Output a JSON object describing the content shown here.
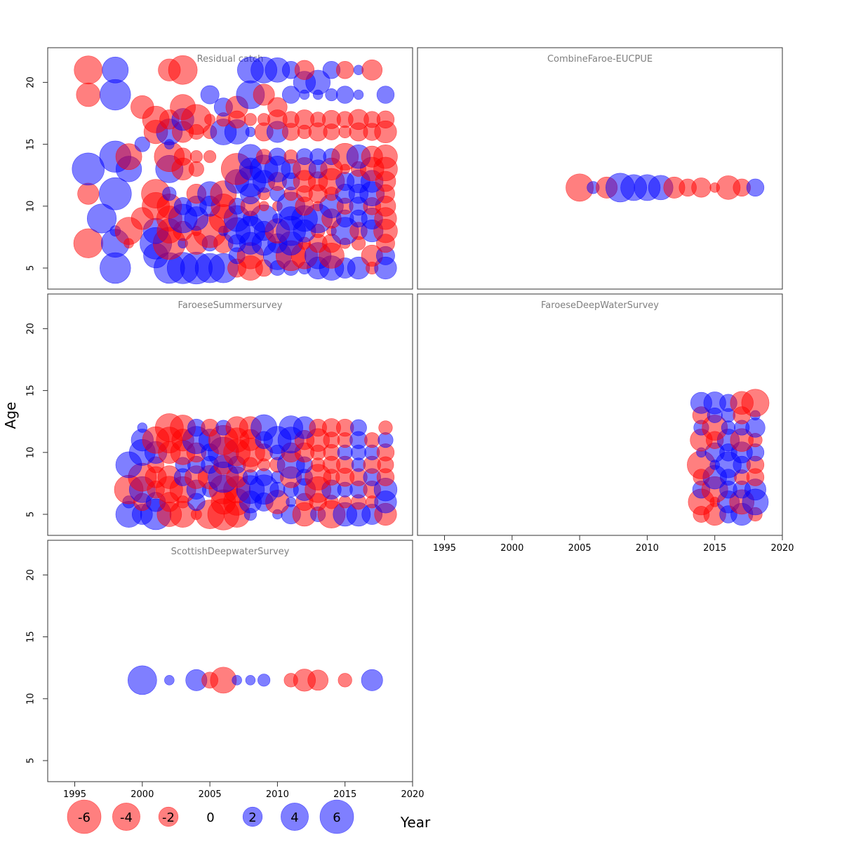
{
  "chart_data": {
    "type": "scatter",
    "subtype": "bubble-residuals",
    "xlabel": "Year",
    "ylabel": "Age",
    "xlim": [
      1993,
      2020
    ],
    "ylim": [
      3.3,
      22.8
    ],
    "x_ticks": [
      1995,
      2000,
      2005,
      2010,
      2015,
      2020
    ],
    "y_ticks": [
      5,
      10,
      15,
      20
    ],
    "colors": {
      "positive": "#0000ff",
      "negative": "#ff0000",
      "fill_opacity": 0.5
    },
    "legend": {
      "placement": "bottom-left",
      "entries": [
        {
          "value": -6,
          "label": "-6"
        },
        {
          "value": -4,
          "label": "-4"
        },
        {
          "value": -2,
          "label": "-2"
        },
        {
          "value": 0,
          "label": "0"
        },
        {
          "value": 2,
          "label": "2"
        },
        {
          "value": 4,
          "label": "4"
        },
        {
          "value": 6,
          "label": "6"
        }
      ]
    },
    "panels": [
      {
        "title": "Residual catch",
        "years": [
          1996,
          1997,
          1998,
          1999,
          2000,
          2001,
          2002,
          2003,
          2004,
          2005,
          2006,
          2007,
          2008,
          2009,
          2010,
          2011,
          2012,
          2013,
          2014,
          2015,
          2016,
          2017,
          2018
        ],
        "ages": [
          5,
          6,
          7,
          8,
          9,
          10,
          11,
          12,
          13,
          14,
          15,
          16,
          17,
          18,
          19,
          20,
          21
        ],
        "residuals": [
          [
            0,
            0,
            5.0,
            0,
            0,
            0,
            5.0,
            5.2,
            5.4,
            4.6,
            4.6,
            -1.8,
            -3.2,
            -1.5,
            1.2,
            1.2,
            0.8,
            2.6,
            3.2,
            2.2,
            2.6,
            -0.8,
            2.6
          ],
          [
            0,
            0,
            0,
            0,
            0,
            3.2,
            0,
            0,
            0,
            0,
            0,
            1.4,
            -3.7,
            0,
            4.2,
            -4.8,
            -3.7,
            3.7,
            -3.4,
            0,
            0,
            -2.4,
            1.8
          ],
          [
            -4.5,
            0,
            4.2,
            -0.5,
            0,
            5.3,
            -5.5,
            0.5,
            -2.6,
            1.3,
            -2.0,
            1.6,
            2.6,
            3.1,
            2.0,
            3.0,
            -0.8,
            -1.8,
            -1.8,
            -0.6,
            -1.0,
            0,
            -1.8
          ],
          [
            0,
            0,
            0.6,
            -4.0,
            0,
            3.4,
            -3.2,
            -2.0,
            -0.5,
            -6.0,
            0.5,
            3.8,
            4.6,
            2.0,
            -3.2,
            4.6,
            2.7,
            -1.0,
            -0.5,
            4.0,
            -1.6,
            2.6,
            -3.0
          ],
          [
            0,
            4.5,
            0,
            0,
            -2.6,
            0,
            -3.4,
            4.4,
            3.0,
            0,
            -4.2,
            3.6,
            1.2,
            4.0,
            0.5,
            3.0,
            3.6,
            4.4,
            -2.0,
            1.6,
            1.6,
            2.4,
            -2.6
          ],
          [
            0,
            0,
            0,
            0,
            0,
            -4.0,
            -3.2,
            1.6,
            2.2,
            2.2,
            -3.2,
            1.4,
            -2.0,
            -0.5,
            -0.5,
            4.2,
            -1.8,
            -0.5,
            3.0,
            -1.4,
            1.8,
            -1.6,
            -2.2
          ],
          [
            -2.4,
            0,
            5.5,
            0,
            0,
            -4.4,
            1.0,
            0,
            -2.0,
            3.2,
            -3.6,
            0,
            2.2,
            -0.8,
            1.2,
            -1.0,
            -1.4,
            -1.8,
            -1.0,
            2.0,
            2.0,
            3.2,
            -1.8
          ],
          [
            0,
            0,
            0,
            0,
            0,
            0,
            0,
            0,
            0,
            0,
            0,
            3.0,
            5.0,
            2.6,
            -1.8,
            1.6,
            -2.6,
            -2.0,
            -3.6,
            1.8,
            2.8,
            2.6,
            -2.2
          ],
          [
            5.5,
            0,
            0,
            3.5,
            0,
            0,
            4.0,
            -2.6,
            -1.2,
            0,
            0,
            -5.2,
            2.6,
            4.2,
            3.6,
            2.0,
            -2.8,
            1.8,
            -2.6,
            -0.5,
            -1.2,
            -3.0,
            -3.0
          ],
          [
            0,
            0,
            5.2,
            -3.6,
            0,
            0,
            -4.8,
            -1.6,
            -0.8,
            -0.8,
            0,
            0,
            3.2,
            -1.2,
            1.6,
            -1.0,
            1.4,
            1.4,
            1.4,
            -3.8,
            3.0,
            -2.4,
            -3.0
          ],
          [
            0,
            0,
            0,
            0,
            1.2,
            0,
            0.5,
            0,
            0,
            0,
            0,
            0,
            0,
            0,
            0,
            0,
            0,
            0,
            0,
            0,
            0,
            0,
            0
          ],
          [
            0,
            0,
            0,
            0,
            0,
            -3.0,
            3.6,
            -2.4,
            -1.2,
            -1.0,
            3.6,
            3.2,
            0.5,
            -1.8,
            2.4,
            -1.6,
            -1.0,
            -1.8,
            -1.4,
            -0.8,
            -1.8,
            -1.6,
            -2.6
          ],
          [
            0,
            0,
            0,
            0,
            0,
            -3.8,
            -2.0,
            2.6,
            -4.8,
            -0.6,
            -1.0,
            -1.6,
            -0.8,
            -0.8,
            -2.0,
            -1.4,
            -2.0,
            -1.2,
            -1.8,
            -1.4,
            -2.2,
            -1.4,
            -1.6
          ],
          [
            0,
            0,
            0,
            0,
            -2.8,
            0,
            0,
            -3.4,
            0,
            0,
            1.8,
            -2.6,
            0,
            0,
            -2.0,
            0,
            0,
            0,
            0,
            0,
            0,
            0,
            0
          ],
          [
            -3.0,
            0,
            5.0,
            0,
            0,
            0,
            0,
            0,
            0,
            1.8,
            0,
            0,
            4.2,
            -2.4,
            0,
            1.6,
            0.5,
            0.5,
            0.8,
            1.6,
            0.5,
            0,
            1.6
          ],
          [
            0,
            0,
            0,
            0,
            0,
            0,
            0,
            0,
            0,
            0,
            0,
            0,
            0,
            0,
            0,
            0,
            2.6,
            3.2,
            0,
            0,
            0,
            0,
            0
          ],
          [
            -4.2,
            0,
            3.6,
            0,
            0,
            0,
            -2.6,
            -4.4,
            0,
            0,
            0,
            0,
            3.6,
            3.6,
            3.2,
            1.6,
            -2.0,
            0,
            1.6,
            -1.6,
            0.5,
            -2.2,
            0
          ]
        ]
      },
      {
        "title": "CombineFaroe-EUCPUE",
        "years": [
          2005,
          2006,
          2007,
          2008,
          2009,
          2010,
          2011,
          2012,
          2013,
          2014,
          2015,
          2016,
          2017,
          2018
        ],
        "ages": [
          11.5
        ],
        "residuals": [
          [
            -4.0,
            0.8,
            -2.4,
            4.4,
            3.6,
            3.6,
            3.2,
            -2.4,
            -1.6,
            -2.0,
            -0.5,
            -3.0,
            -1.6,
            1.6
          ]
        ]
      },
      {
        "title": "FaroeseSummersurvey",
        "years": [
          1999,
          2000,
          2001,
          2002,
          2003,
          2004,
          2005,
          2006,
          2007,
          2008,
          2009,
          2010,
          2011,
          2012,
          2013,
          2014,
          2015,
          2016,
          2017,
          2018
        ],
        "ages": [
          5,
          6,
          7,
          8,
          9,
          10,
          11,
          12
        ],
        "residuals": [
          [
            3.6,
            2.2,
            5.0,
            -3.2,
            -3.6,
            -0.6,
            -4.4,
            -5.2,
            -3.6,
            0.8,
            0,
            0.5,
            2.0,
            -3.0,
            1.2,
            -4.0,
            3.0,
            3.0,
            2.2,
            -2.6
          ],
          [
            0.8,
            -1.6,
            2.0,
            -2.0,
            -0.8,
            1.6,
            0,
            -3.2,
            -3.8,
            2.6,
            1.8,
            -3.0,
            0.5,
            -1.6,
            -1.6,
            -1.0,
            -0.8,
            -1.2,
            -0.8,
            2.6
          ],
          [
            -4.4,
            3.6,
            -1.6,
            -3.8,
            -3.6,
            2.0,
            1.2,
            -4.4,
            -3.8,
            4.2,
            4.6,
            1.2,
            1.2,
            2.6,
            -3.6,
            2.0,
            1.2,
            1.6,
            -1.6,
            2.8
          ],
          [
            0,
            -4.2,
            -2.4,
            -2.8,
            1.6,
            -2.8,
            -3.0,
            5.0,
            -2.4,
            1.2,
            1.6,
            0.8,
            -2.4,
            1.4,
            -3.6,
            -1.4,
            -1.8,
            -1.6,
            1.6,
            -1.6
          ],
          [
            3.6,
            0,
            -1.4,
            0,
            1.2,
            1.6,
            1.6,
            -2.0,
            1.6,
            -1.2,
            -0.8,
            -1.2,
            4.0,
            1.4,
            -1.0,
            -1.6,
            -1.6,
            1.0,
            -1.6,
            -1.4
          ],
          [
            0,
            3.6,
            2.6,
            -2.6,
            -3.2,
            -2.0,
            1.6,
            5.0,
            -3.8,
            -4.4,
            -1.6,
            1.2,
            -2.0,
            -2.0,
            -1.2,
            -1.4,
            1.2,
            1.2,
            1.2,
            -1.6
          ],
          [
            0,
            2.6,
            -3.8,
            -3.6,
            -2.6,
            4.0,
            2.6,
            -4.6,
            -3.2,
            -2.4,
            1.6,
            4.0,
            3.6,
            -2.0,
            -2.8,
            -1.4,
            -1.2,
            1.6,
            -1.2,
            1.2
          ],
          [
            0,
            0.5,
            0,
            -4.2,
            -3.4,
            1.6,
            -1.6,
            1.2,
            -2.6,
            -2.6,
            3.6,
            0,
            3.0,
            2.6,
            -1.6,
            -1.8,
            -1.6,
            1.4,
            0,
            -1.0
          ]
        ]
      },
      {
        "title": "FaroeseDeepWaterSurvey",
        "years": [
          2014,
          2015,
          2016,
          2017,
          2018
        ],
        "ages": [
          5,
          6,
          7,
          8,
          9,
          10,
          11,
          12,
          13,
          14
        ],
        "residuals": [
          [
            -1.4,
            -2.6,
            1.6,
            2.6,
            -1.0
          ],
          [
            -3.6,
            -0.5,
            2.6,
            -3.2,
            3.6
          ],
          [
            1.6,
            -3.6,
            1.6,
            1.6,
            2.4
          ],
          [
            -1.4,
            3.0,
            1.4,
            -1.2,
            -1.6
          ],
          [
            -4.2,
            0.5,
            3.6,
            1.6,
            -1.6
          ],
          [
            0.5,
            2.0,
            1.6,
            2.4,
            1.6
          ],
          [
            -2.6,
            -1.6,
            2.6,
            -2.8,
            -1.0
          ],
          [
            1.2,
            -3.4,
            1.0,
            1.2,
            2.0
          ],
          [
            -1.6,
            1.2,
            1.0,
            -1.6,
            0.5
          ],
          [
            2.4,
            2.6,
            1.6,
            -2.8,
            -4.0
          ]
        ]
      },
      {
        "title": "ScottishDeepwaterSurvey",
        "years": [
          2000,
          2002,
          2004,
          2005,
          2006,
          2007,
          2008,
          2009,
          2011,
          2012,
          2013,
          2015,
          2017
        ],
        "ages": [
          11.5
        ],
        "residuals": [
          [
            4.4,
            0.5,
            2.4,
            -1.4,
            -3.6,
            0.5,
            0.5,
            0.8,
            -1.0,
            -2.6,
            -2.2,
            -1.0,
            2.4
          ]
        ]
      }
    ]
  }
}
